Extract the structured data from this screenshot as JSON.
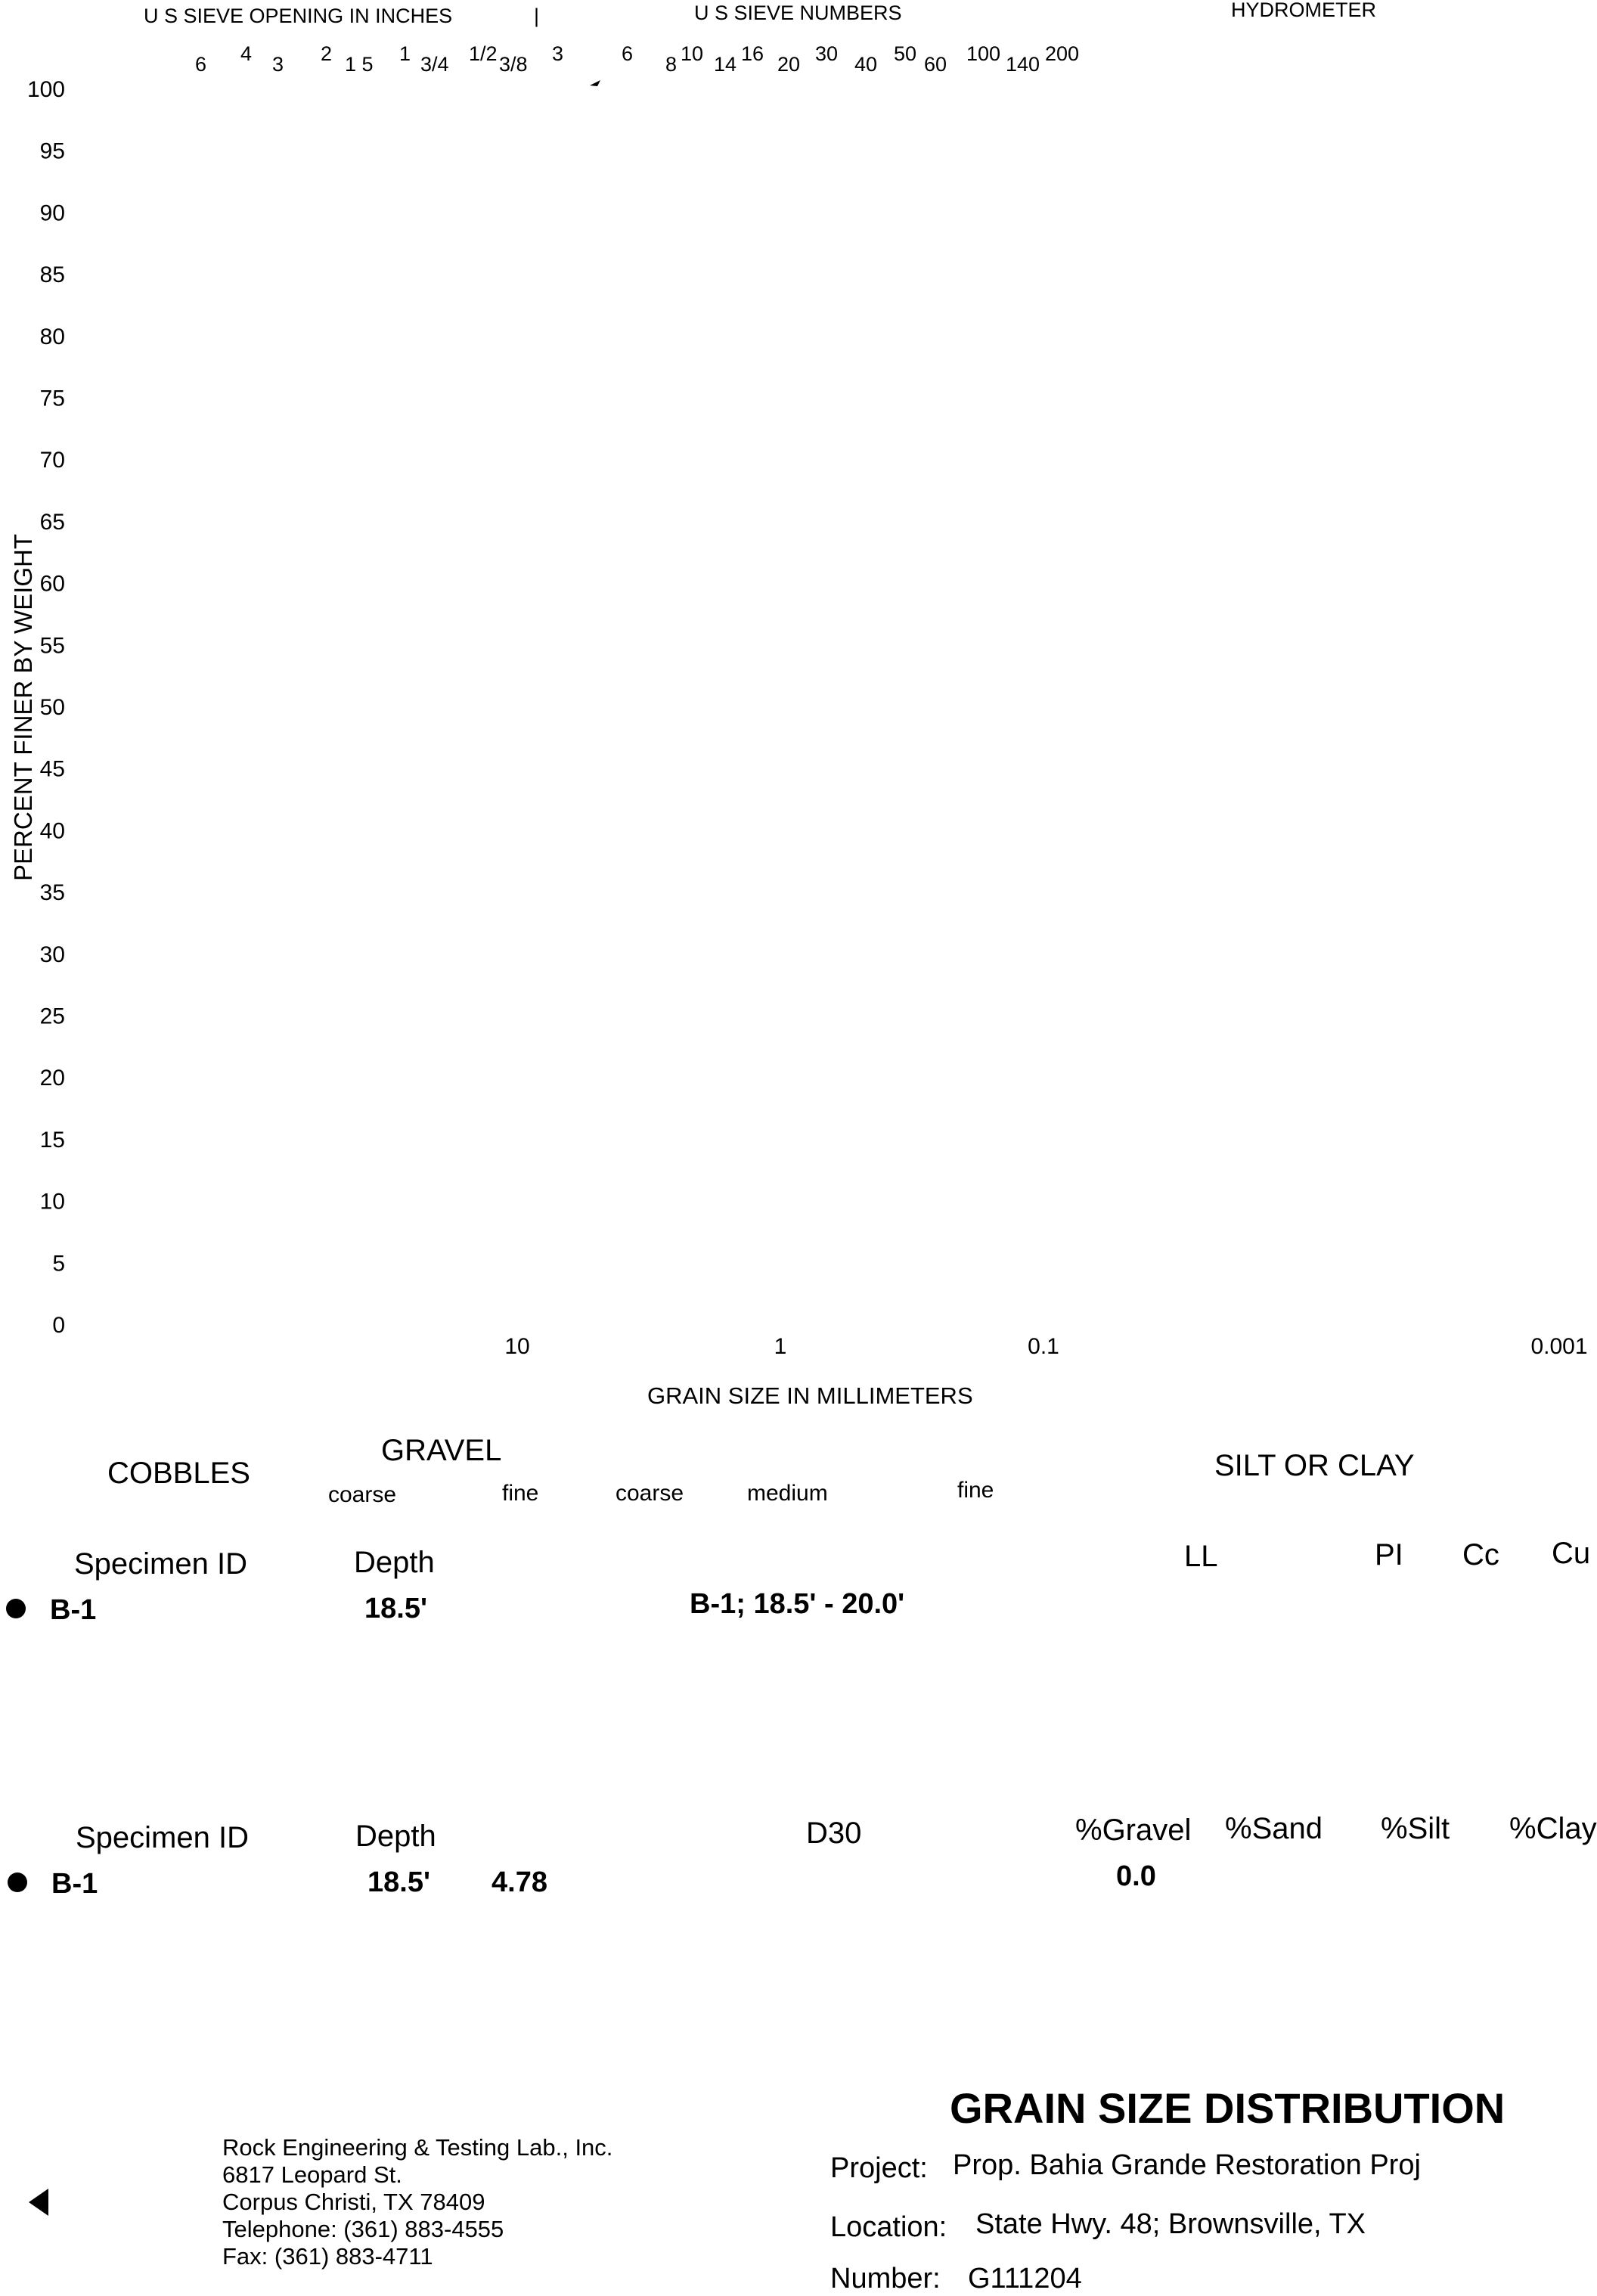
{
  "chart_data": {
    "type": "scatter",
    "title": "",
    "top_labels": {
      "sieve_inches": "U S  SIEVE OPENING IN INCHES",
      "separator": "|",
      "sieve_numbers": "U S  SIEVE NUMBERS",
      "hydrometer": "HYDROMETER"
    },
    "sieve_inch_labels": [
      "6",
      "4",
      "3",
      "2",
      "1 5",
      "1",
      "3/4",
      "1/2",
      "3/8",
      "3"
    ],
    "sieve_number_labels": [
      "6",
      "8",
      "10",
      "14",
      "16",
      "20",
      "30",
      "40",
      "50",
      "60",
      "100",
      "140",
      "200"
    ],
    "ylabel": "PERCENT FINER BY WEIGHT",
    "yticks": [
      "100",
      "95",
      "90",
      "85",
      "80",
      "75",
      "70",
      "65",
      "60",
      "55",
      "50",
      "45",
      "40",
      "35",
      "30",
      "25",
      "20",
      "15",
      "10",
      "5",
      "0"
    ],
    "ylim": [
      0,
      100
    ],
    "xlabel": "GRAIN SIZE IN MILLIMETERS",
    "xticks": [
      "10",
      "1",
      "0.1",
      "0.001"
    ],
    "x_scale": "log",
    "grid": false,
    "series": []
  },
  "soil_classes": {
    "cobbles": "COBBLES",
    "gravel": "GRAVEL",
    "gravel_coarse": "coarse",
    "gravel_fine": "fine",
    "sand_coarse": "coarse",
    "sand_medium": "medium",
    "sand_fine": "fine",
    "silt_clay": "SILT OR CLAY"
  },
  "table1": {
    "headers": {
      "specimen_id": "Specimen ID",
      "depth": "Depth",
      "ll": "LL",
      "pi": "PI",
      "cc": "Cc",
      "cu": "Cu"
    },
    "row": {
      "specimen_id": "B-1",
      "depth": "18.5'",
      "classification": "B-1; 18.5' - 20.0'"
    }
  },
  "table2": {
    "headers": {
      "specimen_id": "Specimen ID",
      "depth": "Depth",
      "d30": "D30",
      "gravel": "%Gravel",
      "sand": "%Sand",
      "silt": "%Silt",
      "clay": "%Clay"
    },
    "row": {
      "specimen_id": "B-1",
      "depth": "18.5'",
      "d100": "4.78",
      "gravel": "0.0"
    }
  },
  "footer": {
    "title": "GRAIN SIZE DISTRIBUTION",
    "company": {
      "name": "Rock Engineering & Testing Lab., Inc.",
      "street": "6817 Leopard St.",
      "city": "Corpus Christi, TX 78409",
      "telephone": "Telephone:  (361) 883-4555",
      "fax": "Fax:  (361) 883-4711"
    },
    "project_label": "Project:",
    "project_value": "Prop. Bahia Grande Restoration Proj",
    "location_label": "Location:",
    "location_value": "State Hwy. 48; Brownsville, TX",
    "number_label": "Number:",
    "number_value": "G111204"
  }
}
